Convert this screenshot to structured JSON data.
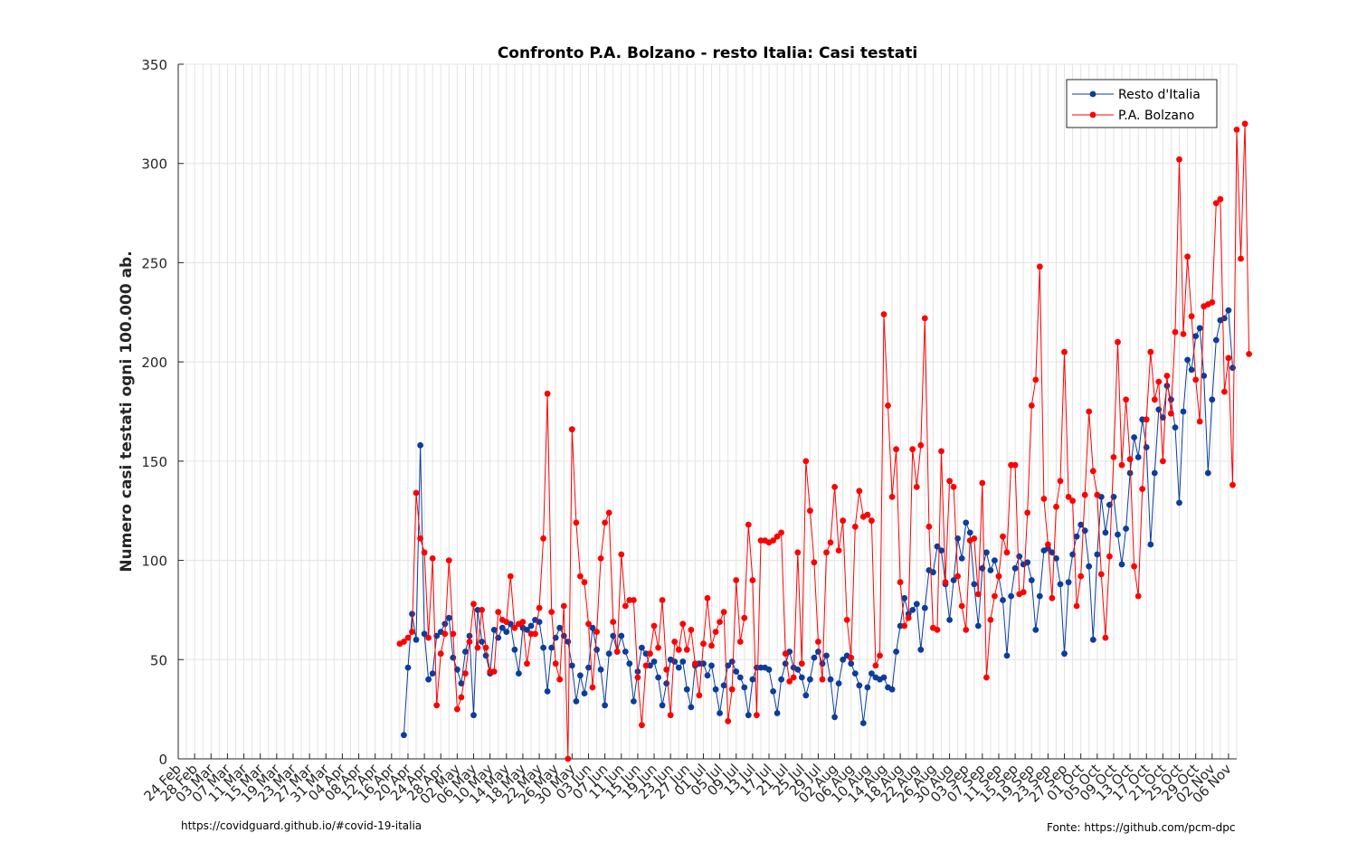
{
  "chart_data": {
    "type": "line",
    "title": "Confronto P.A. Bolzano - resto Italia: Casi testati",
    "ylabel": "Numero casi testati ogni 100.000 ab.",
    "xlabel": "",
    "ylim": [
      0,
      350
    ],
    "y_ticks": [
      "0",
      "50",
      "100",
      "150",
      "200",
      "250",
      "300",
      "350"
    ],
    "x_start": "2020-02-24",
    "x_end": "2020-11-08",
    "x_tick_labels": [
      "24 Feb",
      "28 Feb",
      "03 Mar",
      "07 Mar",
      "11 Mar",
      "15 Mar",
      "19 Mar",
      "23 Mar",
      "27 Mar",
      "31 Mar",
      "04 Apr",
      "08 Apr",
      "12 Apr",
      "16 Apr",
      "20 Apr",
      "24 Apr",
      "28 Apr",
      "02 May",
      "06 May",
      "10 May",
      "14 May",
      "18 May",
      "22 May",
      "26 May",
      "30 May",
      "03 Jun",
      "07 Jun",
      "11 Jun",
      "15 Jun",
      "19 Jun",
      "23 Jun",
      "27 Jun",
      "01 Jul",
      "05 Jul",
      "09 Jul",
      "13 Jul",
      "17 Jul",
      "21 Jul",
      "25 Jul",
      "29 Jul",
      "02 Aug",
      "06 Aug",
      "10 Aug",
      "14 Aug",
      "18 Aug",
      "22 Aug",
      "26 Aug",
      "30 Aug",
      "03 Sep",
      "07 Sep",
      "11 Sep",
      "15 Sep",
      "19 Sep",
      "23 Sep",
      "27 Sep",
      "01 Oct",
      "05 Oct",
      "09 Oct",
      "13 Oct",
      "17 Oct",
      "21 Oct",
      "25 Oct",
      "29 Oct",
      "02 Nov",
      "06 Nov"
    ],
    "grid": true,
    "legend": "top-right",
    "series": [
      {
        "name": "Resto d'Italia",
        "color": "#0b3d9c",
        "start_date": "2020-04-19",
        "values": [
          12,
          46,
          73,
          60,
          158,
          63,
          40,
          43,
          62,
          64,
          68,
          71,
          51,
          45,
          38,
          54,
          62,
          22,
          75,
          59,
          52,
          43,
          65,
          61,
          66,
          64,
          68,
          55,
          43,
          66,
          65,
          67,
          70,
          69,
          56,
          34,
          56,
          61,
          66,
          62,
          59,
          47,
          29,
          42,
          33,
          46,
          66,
          55,
          45,
          27,
          53,
          62,
          54,
          62,
          54,
          48,
          29,
          44,
          56,
          53,
          47,
          49,
          41,
          27,
          38,
          50,
          49,
          46,
          49,
          35,
          26,
          47,
          48,
          48,
          42,
          47,
          35,
          23,
          37,
          47,
          49,
          44,
          41,
          36,
          22,
          40,
          46,
          46,
          46,
          45,
          34,
          23,
          40,
          48,
          54,
          46,
          45,
          41,
          32,
          40,
          51,
          54,
          48,
          52,
          40,
          21,
          38,
          50,
          52,
          48,
          43,
          37,
          18,
          36,
          43,
          41,
          40,
          41,
          36,
          35,
          54,
          67,
          81,
          73,
          75,
          78,
          55,
          76,
          95,
          94,
          107,
          105,
          88,
          70,
          90,
          111,
          101,
          119,
          114,
          88,
          67,
          96,
          104,
          95,
          100,
          92,
          80,
          52,
          82,
          96,
          102,
          98,
          99,
          90,
          65,
          82,
          105,
          106,
          104,
          101,
          88,
          53,
          89,
          103,
          112,
          118,
          115,
          97,
          60,
          103,
          132,
          114,
          128,
          132,
          113,
          98,
          116,
          144,
          162,
          152,
          171,
          157,
          108,
          144,
          176,
          172,
          188,
          181,
          167,
          129,
          175,
          201,
          196,
          213,
          217,
          193,
          144,
          181,
          211,
          221,
          222,
          226,
          197
        ]
      },
      {
        "name": "P.A. Bolzano",
        "color": "#ff0000",
        "start_date": "2020-04-18",
        "values": [
          58,
          59,
          61,
          64,
          134,
          111,
          104,
          61,
          101,
          27,
          53,
          63,
          100,
          63,
          25,
          31,
          43,
          59,
          78,
          56,
          75,
          56,
          44,
          44,
          74,
          70,
          69,
          92,
          66,
          68,
          69,
          48,
          63,
          63,
          76,
          111,
          184,
          74,
          48,
          40,
          77,
          0,
          166,
          119,
          92,
          89,
          68,
          36,
          64,
          101,
          119,
          124,
          69,
          54,
          103,
          77,
          80,
          80,
          41,
          17,
          47,
          53,
          67,
          56,
          80,
          45,
          22,
          59,
          55,
          68,
          55,
          65,
          48,
          32,
          58,
          81,
          57,
          64,
          69,
          74,
          19,
          35,
          90,
          59,
          71,
          118,
          90,
          22,
          110,
          110,
          109,
          110,
          112,
          114,
          53,
          39,
          41,
          104,
          48,
          150,
          125,
          99,
          59,
          40,
          104,
          109,
          137,
          105,
          120,
          70,
          51,
          117,
          135,
          122,
          123,
          120,
          47,
          52,
          224,
          178,
          132,
          156,
          89,
          67,
          71,
          156,
          137,
          158,
          222,
          117,
          66,
          65,
          155,
          89,
          140,
          137,
          92,
          77,
          65,
          110,
          111,
          83,
          139,
          41,
          70,
          82,
          92,
          112,
          104,
          148,
          148,
          83,
          84,
          124,
          178,
          191,
          248,
          131,
          108,
          81,
          127,
          140,
          205,
          132,
          130,
          77,
          92,
          133,
          175,
          145,
          133,
          93,
          61,
          102,
          152,
          210,
          148,
          181,
          151,
          97,
          82,
          136,
          171,
          205,
          181,
          190,
          150,
          193,
          174,
          215,
          302,
          214,
          253,
          223,
          191,
          170,
          228,
          229,
          230,
          280,
          282,
          185,
          202,
          138,
          317,
          252,
          320,
          204
        ]
      }
    ],
    "footer_left": "https://covidguard.github.io/#covid-19-italia",
    "footer_right": "Fonte: https://github.com/pcm-dpc"
  }
}
